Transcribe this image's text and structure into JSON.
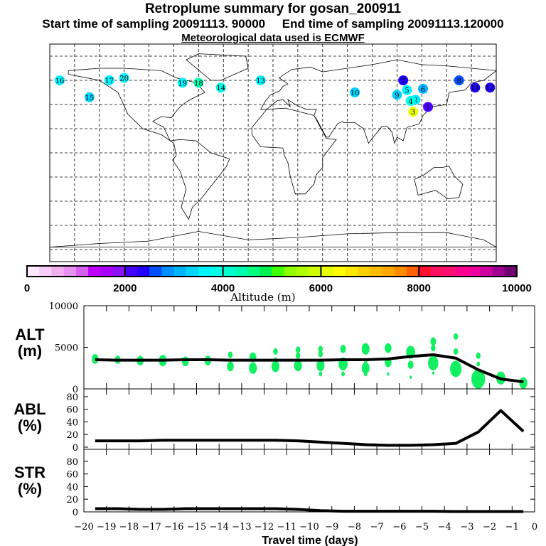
{
  "title": "Retroplume summary for gosan_200911",
  "subtitle_start": "Start time of sampling 20091113. 90000",
  "subtitle_end": "End time of sampling 20091113.120000",
  "subtitle_met": "Meteorological data used is ECMWF",
  "chart_data": [
    {
      "type": "map",
      "name": "plume-map",
      "grid": "20-degree dashed lat/lon",
      "plume_labels": [
        {
          "label": "1",
          "lon": 125,
          "lat": 38,
          "alt": 2200
        },
        {
          "label": "2",
          "lon": 115,
          "lat": 44,
          "alt": 3500
        },
        {
          "label": "3",
          "lon": 113,
          "lat": 34,
          "alt": 6200
        },
        {
          "label": "4",
          "lon": 111,
          "lat": 43,
          "alt": 3800
        },
        {
          "label": "5",
          "lon": 108,
          "lat": 52,
          "alt": 3700
        },
        {
          "label": "6",
          "lon": 121,
          "lat": 53,
          "alt": 3200
        },
        {
          "label": "7",
          "lon": 105,
          "lat": 60,
          "alt": 2400
        },
        {
          "label": "8",
          "lon": 150,
          "lat": 60,
          "alt": 2600
        },
        {
          "label": "9",
          "lon": 100,
          "lat": 48,
          "alt": 3300
        },
        {
          "label": "10",
          "lon": 66,
          "lat": 50,
          "alt": 3400
        },
        {
          "label": "11",
          "lon": 163,
          "lat": 54,
          "alt": 2300
        },
        {
          "label": "12",
          "lon": 175,
          "lat": 54,
          "alt": 2300
        },
        {
          "label": "13",
          "lon": -10,
          "lat": 60,
          "alt": 3600
        },
        {
          "label": "14",
          "lon": -42,
          "lat": 54,
          "alt": 3800
        },
        {
          "label": "15",
          "lon": -148,
          "lat": 46,
          "alt": 3400
        },
        {
          "label": "16",
          "lon": -172,
          "lat": 60,
          "alt": 3500
        },
        {
          "label": "17",
          "lon": -132,
          "lat": 60,
          "alt": 3600
        },
        {
          "label": "18",
          "lon": -60,
          "lat": 58,
          "alt": 4300
        },
        {
          "label": "19",
          "lon": -73,
          "lat": 58,
          "alt": 3700
        },
        {
          "label": "20",
          "lon": -120,
          "lat": 62,
          "alt": 3500
        }
      ]
    },
    {
      "type": "colorbar",
      "name": "altitude-colorbar",
      "label": "Altitude (m)",
      "range": [
        0,
        10000
      ],
      "tick_labels": [
        "0",
        "2000",
        "4000",
        "6000",
        "8000",
        "10000"
      ],
      "colors": [
        "#ffe8ff",
        "#f8ccf8",
        "#f0b0f0",
        "#e690f2",
        "#d860f0",
        "#c000ff",
        "#a800f8",
        "#8c10f8",
        "#4800ff",
        "#2000f8",
        "#0050ff",
        "#0090ff",
        "#00b4ff",
        "#00d4ff",
        "#00f4ff",
        "#00ffe8",
        "#00ffcc",
        "#00ffb0",
        "#00ff80",
        "#00f050",
        "#40ff00",
        "#90ff00",
        "#b0ff00",
        "#d0ff00",
        "#e8ff00",
        "#ffff00",
        "#ffe800",
        "#ffd000",
        "#ffbc00",
        "#ffa800",
        "#ff8c00",
        "#ff6000",
        "#ff1030",
        "#ff1060",
        "#ff1070",
        "#ff0090",
        "#f000a0",
        "#d000a0",
        "#a00090",
        "#700070"
      ]
    },
    {
      "type": "line",
      "name": "ALT",
      "ylabel": "ALT\n(m)",
      "ylabel_lines": [
        "ALT",
        "(m)"
      ],
      "ylim": [
        0,
        10000
      ],
      "yticks": [
        "0",
        "5000",
        "10000"
      ],
      "x": [
        -19.5,
        -18.5,
        -17.5,
        -16.5,
        -15.5,
        -14.5,
        -13.5,
        -12.5,
        -11.5,
        -10.5,
        -9.5,
        -8.5,
        -7.5,
        -6.5,
        -5.5,
        -4.5,
        -3.5,
        -2.5,
        -1.5,
        -0.5
      ],
      "values": [
        3500,
        3450,
        3450,
        3450,
        3500,
        3500,
        3450,
        3450,
        3450,
        3450,
        3450,
        3500,
        3500,
        3600,
        3900,
        4100,
        3700,
        2300,
        1200,
        850
      ],
      "scatter_color": "#10f060",
      "scatter": [
        [
          -19.5,
          3600,
          3
        ],
        [
          -18.5,
          3500,
          2.5
        ],
        [
          -17.5,
          3400,
          3
        ],
        [
          -16.5,
          3400,
          3.5
        ],
        [
          -15.5,
          3300,
          3
        ],
        [
          -14.5,
          3400,
          3
        ],
        [
          -13.5,
          4100,
          2
        ],
        [
          -13.5,
          2700,
          3
        ],
        [
          -12.5,
          3800,
          3
        ],
        [
          -12.5,
          2500,
          3.5
        ],
        [
          -11.5,
          4500,
          2
        ],
        [
          -11.5,
          3400,
          2
        ],
        [
          -11.5,
          2700,
          3.5
        ],
        [
          -10.5,
          4700,
          2
        ],
        [
          -10.5,
          4000,
          2
        ],
        [
          -10.5,
          2800,
          3.5
        ],
        [
          -9.5,
          4800,
          2
        ],
        [
          -9.5,
          4200,
          2
        ],
        [
          -9.5,
          2800,
          3.5
        ],
        [
          -9.5,
          1800,
          1.5
        ],
        [
          -8.5,
          4800,
          2.5
        ],
        [
          -8.5,
          3000,
          4
        ],
        [
          -8.5,
          1800,
          1.5
        ],
        [
          -7.5,
          4800,
          3.5
        ],
        [
          -7.5,
          3400,
          1.5
        ],
        [
          -7.5,
          2500,
          3.5
        ],
        [
          -7.5,
          1800,
          1.5
        ],
        [
          -6.5,
          4900,
          3
        ],
        [
          -6.5,
          3200,
          3
        ],
        [
          -6.5,
          1800,
          1
        ],
        [
          -5.5,
          4400,
          4
        ],
        [
          -5.5,
          2900,
          2.5
        ],
        [
          -5.5,
          1400,
          1
        ],
        [
          -4.5,
          5700,
          2.5
        ],
        [
          -4.5,
          4900,
          2
        ],
        [
          -4.5,
          3100,
          4.5
        ],
        [
          -4.5,
          1900,
          1
        ],
        [
          -3.5,
          6300,
          2
        ],
        [
          -3.5,
          4500,
          2
        ],
        [
          -3.5,
          2400,
          5
        ],
        [
          -2.5,
          4000,
          2
        ],
        [
          -2.5,
          3000,
          1.5
        ],
        [
          -2.5,
          1200,
          6
        ],
        [
          -1.5,
          1300,
          4
        ],
        [
          -0.5,
          700,
          3.5
        ]
      ]
    },
    {
      "type": "line",
      "name": "ABL",
      "ylabel_lines": [
        "ABL",
        "(%)"
      ],
      "ylim": [
        0,
        90
      ],
      "yticks": [
        "0",
        "20",
        "40",
        "60",
        "80"
      ],
      "x": [
        -19.5,
        -18.5,
        -17.5,
        -16.5,
        -15.5,
        -14.5,
        -13.5,
        -12.5,
        -11.5,
        -10.5,
        -9.5,
        -8.5,
        -7.5,
        -6.5,
        -5.5,
        -4.5,
        -3.5,
        -2.5,
        -1.5,
        -0.5
      ],
      "values": [
        10,
        10,
        10,
        11,
        11,
        11,
        11,
        11,
        11,
        10,
        8,
        6,
        4,
        3,
        3,
        4,
        6,
        24,
        58,
        25
      ]
    },
    {
      "type": "line",
      "name": "STR",
      "ylabel_lines": [
        "STR",
        "(%)"
      ],
      "ylim": [
        0,
        90
      ],
      "yticks": [
        "0",
        "20",
        "40",
        "60",
        "80"
      ],
      "x": [
        -19.5,
        -18.5,
        -17.5,
        -16.5,
        -15.5,
        -14.5,
        -13.5,
        -12.5,
        -11.5,
        -10.5,
        -9.5,
        -8.5,
        -7.5,
        -6.5,
        -5.5,
        -4.5,
        -3.5,
        -2.5,
        -1.5,
        -0.5
      ],
      "values": [
        5,
        5,
        4,
        4,
        5,
        5,
        5,
        5,
        5,
        4,
        2,
        1,
        1,
        1,
        1,
        1,
        0.5,
        0.5,
        0.5,
        0.5
      ],
      "xlabel": "Travel time (days)",
      "xlim": [
        -20,
        0
      ],
      "xticks": [
        "-20",
        "-19",
        "-18",
        "-17",
        "-16",
        "-15",
        "-14",
        "-13",
        "-12",
        "-11",
        "-10",
        "-9",
        "-8",
        "-7",
        "-6",
        "-5",
        "-4",
        "-3",
        "-2",
        "-1",
        "0"
      ]
    }
  ]
}
